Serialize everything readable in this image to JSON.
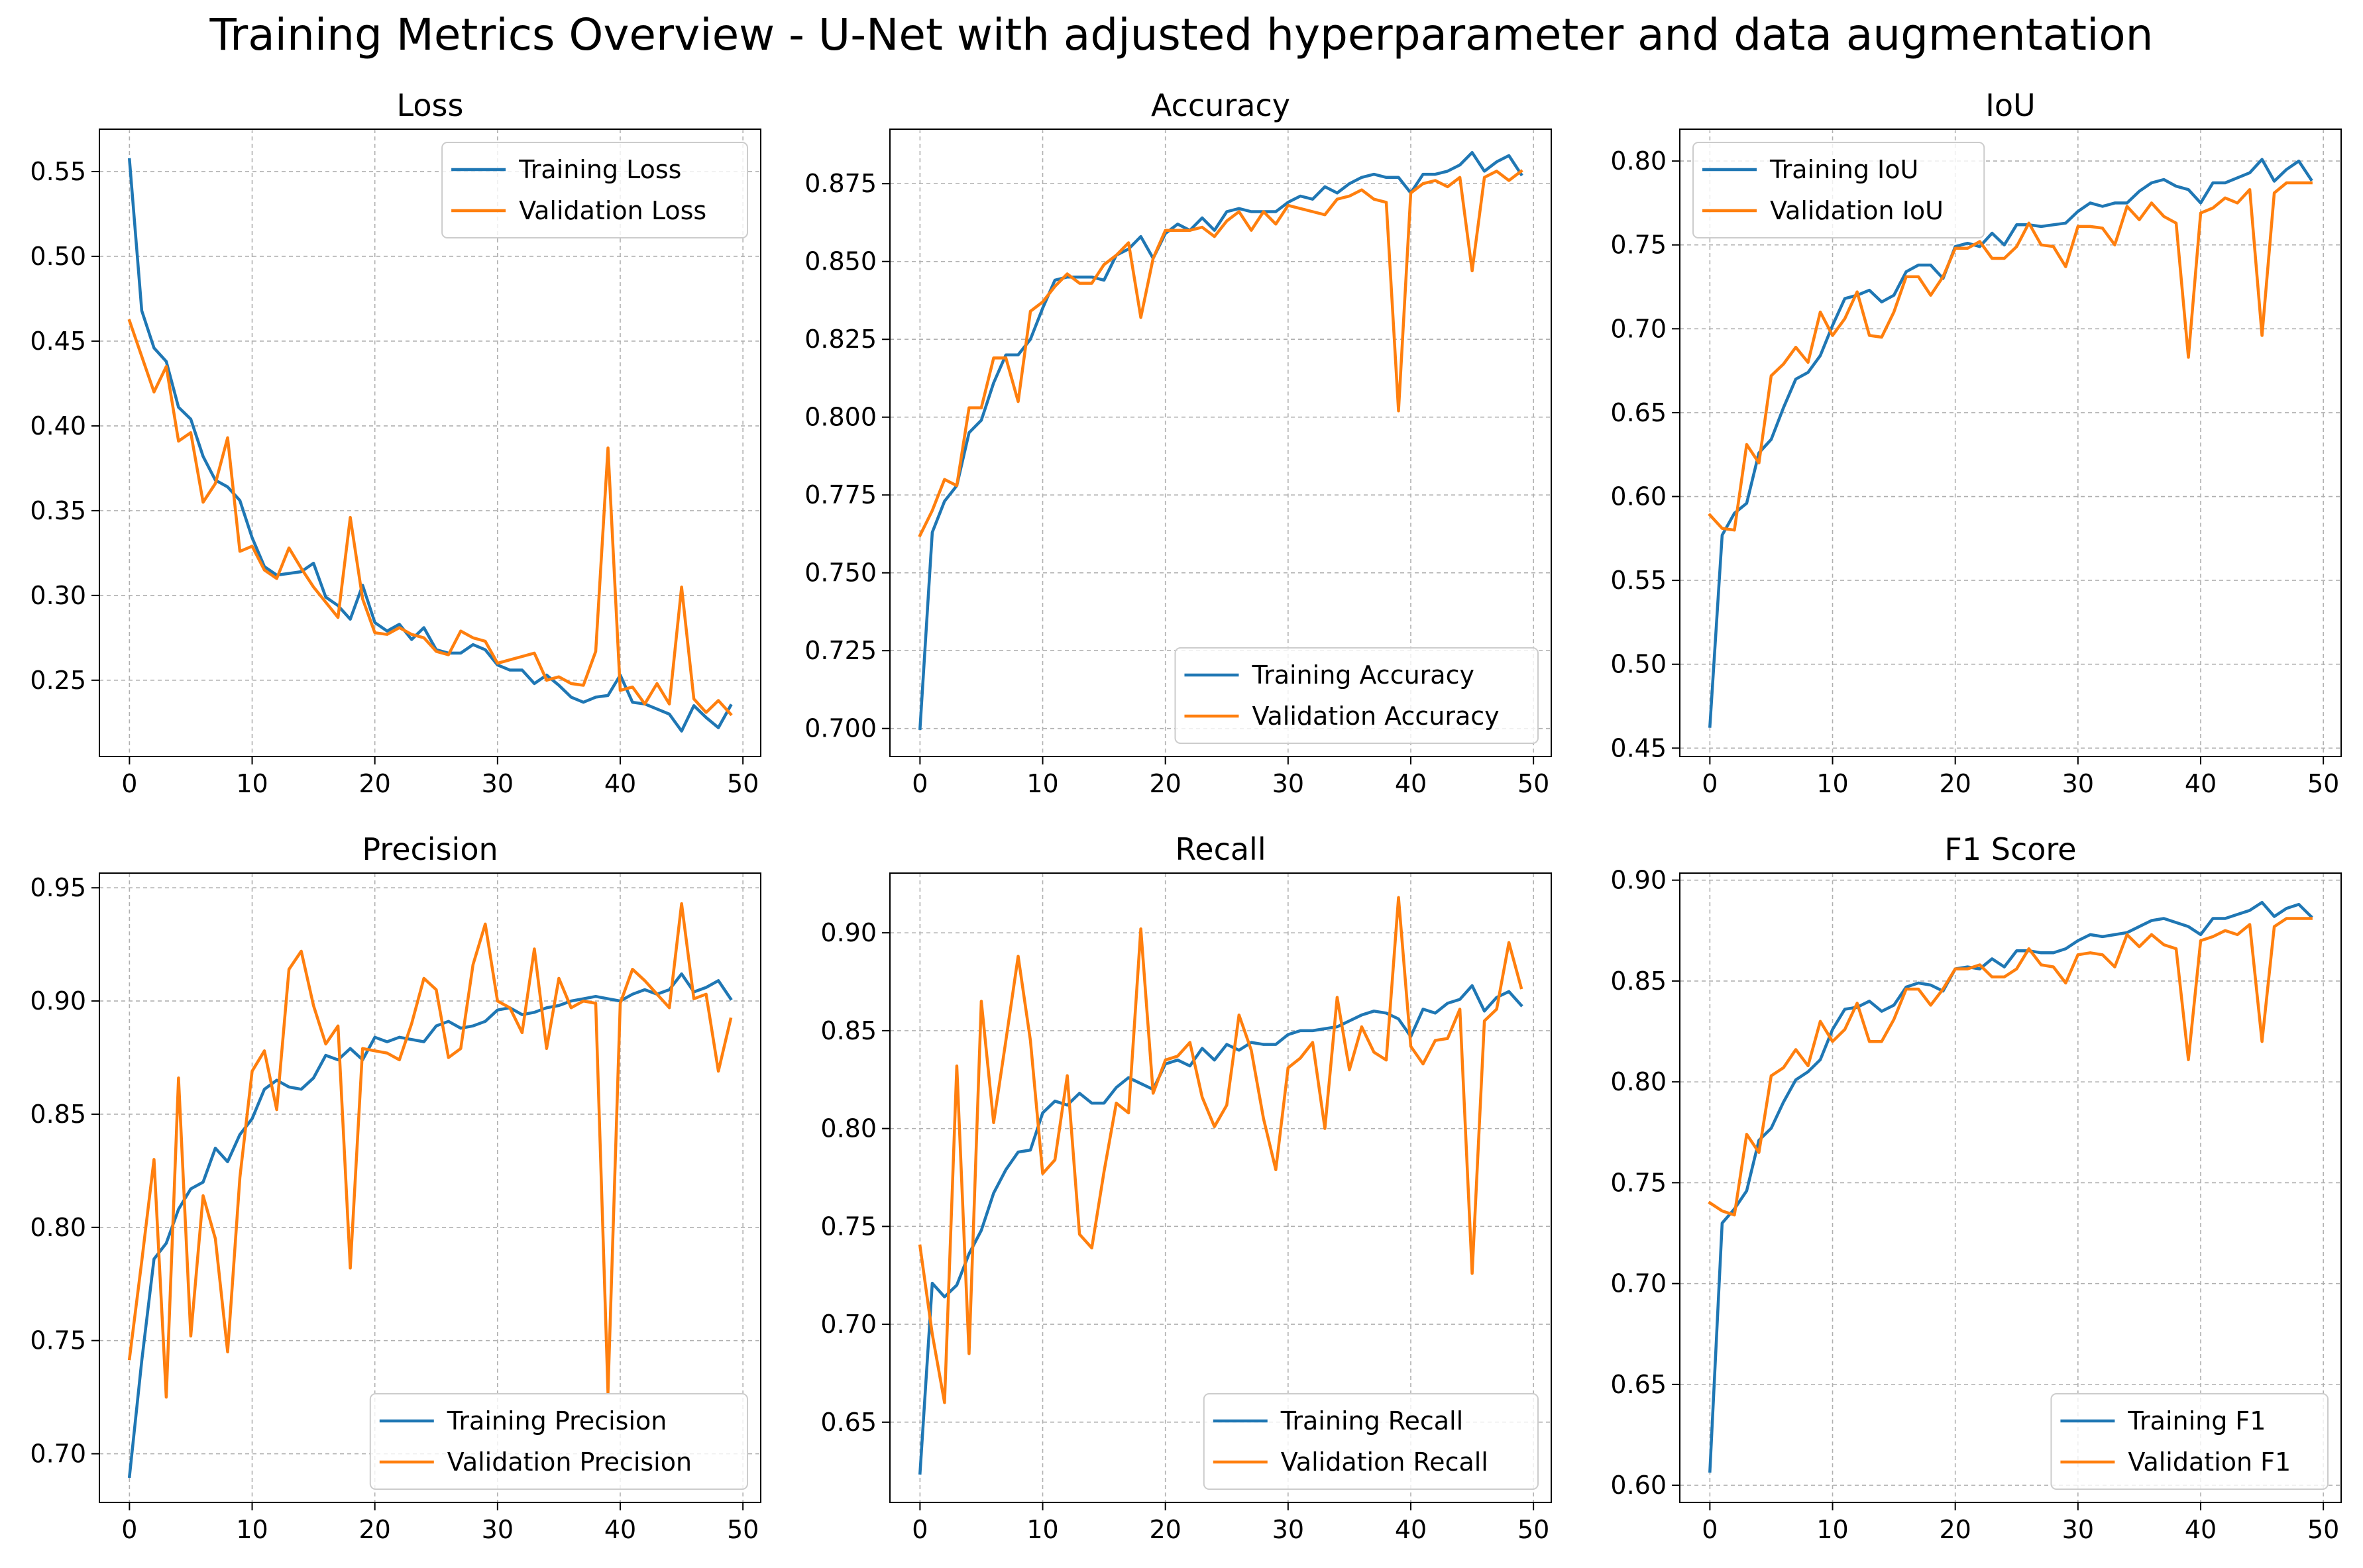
{
  "figure_title": "Training Metrics Overview - U-Net with adjusted hyperparameter and data augmentation",
  "colors": {
    "training": "#1f77b4",
    "validation": "#ff7f0e",
    "grid": "#b0b0b0"
  },
  "chart_data": [
    {
      "type": "line",
      "title": "Loss",
      "xlim": [
        -2.45,
        51.45
      ],
      "ylim": [
        0.205,
        0.575
      ],
      "xticks": [
        0,
        10,
        20,
        30,
        40,
        50
      ],
      "yticks": [
        0.25,
        0.3,
        0.35,
        0.4,
        0.45,
        0.5,
        0.55
      ],
      "legend": "upper right",
      "grid": true,
      "series": [
        {
          "name": "Training Loss",
          "values": [
            0.557,
            0.468,
            0.446,
            0.438,
            0.411,
            0.404,
            0.382,
            0.368,
            0.364,
            0.356,
            0.334,
            0.317,
            0.312,
            0.313,
            0.314,
            0.319,
            0.299,
            0.294,
            0.286,
            0.306,
            0.284,
            0.279,
            0.283,
            0.274,
            0.281,
            0.268,
            0.266,
            0.266,
            0.271,
            0.268,
            0.259,
            0.256,
            0.256,
            0.248,
            0.253,
            0.247,
            0.24,
            0.237,
            0.24,
            0.241,
            0.253,
            0.237,
            0.236,
            0.233,
            0.23,
            0.22,
            0.235,
            0.228,
            0.222,
            0.235
          ]
        },
        {
          "name": "Validation Loss",
          "values": [
            0.462,
            0.441,
            0.42,
            0.435,
            0.391,
            0.396,
            0.355,
            0.366,
            0.393,
            0.326,
            0.329,
            0.315,
            0.31,
            0.328,
            0.316,
            0.305,
            0.296,
            0.287,
            0.346,
            0.298,
            0.278,
            0.277,
            0.281,
            0.277,
            0.275,
            0.267,
            0.265,
            0.279,
            0.275,
            0.273,
            0.26,
            0.262,
            0.264,
            0.266,
            0.25,
            0.252,
            0.248,
            0.247,
            0.267,
            0.387,
            0.244,
            0.246,
            0.236,
            0.248,
            0.236,
            0.305,
            0.239,
            0.231,
            0.238,
            0.23
          ]
        }
      ]
    },
    {
      "type": "line",
      "title": "Accuracy",
      "xlim": [
        -2.45,
        51.45
      ],
      "ylim": [
        0.691,
        0.8925
      ],
      "xticks": [
        0,
        10,
        20,
        30,
        40,
        50
      ],
      "yticks": [
        0.7,
        0.725,
        0.75,
        0.775,
        0.8,
        0.825,
        0.85,
        0.875
      ],
      "legend": "lower right",
      "grid": true,
      "series": [
        {
          "name": "Training Accuracy",
          "values": [
            0.7,
            0.763,
            0.773,
            0.778,
            0.795,
            0.799,
            0.811,
            0.82,
            0.82,
            0.825,
            0.835,
            0.844,
            0.845,
            0.845,
            0.845,
            0.844,
            0.852,
            0.854,
            0.858,
            0.851,
            0.859,
            0.862,
            0.86,
            0.864,
            0.86,
            0.866,
            0.867,
            0.866,
            0.866,
            0.866,
            0.869,
            0.871,
            0.87,
            0.874,
            0.872,
            0.875,
            0.877,
            0.878,
            0.877,
            0.877,
            0.872,
            0.878,
            0.878,
            0.879,
            0.881,
            0.885,
            0.879,
            0.882,
            0.884,
            0.878
          ]
        },
        {
          "name": "Validation Accuracy",
          "values": [
            0.762,
            0.77,
            0.78,
            0.778,
            0.803,
            0.803,
            0.819,
            0.819,
            0.805,
            0.834,
            0.837,
            0.842,
            0.846,
            0.843,
            0.843,
            0.849,
            0.852,
            0.856,
            0.832,
            0.851,
            0.86,
            0.86,
            0.86,
            0.861,
            0.858,
            0.863,
            0.866,
            0.86,
            0.866,
            0.862,
            0.868,
            0.867,
            0.866,
            0.865,
            0.87,
            0.871,
            0.873,
            0.87,
            0.869,
            0.802,
            0.872,
            0.875,
            0.876,
            0.874,
            0.877,
            0.847,
            0.877,
            0.879,
            0.876,
            0.879
          ]
        }
      ]
    },
    {
      "type": "line",
      "title": "IoU",
      "xlim": [
        -2.45,
        51.45
      ],
      "ylim": [
        0.445,
        0.819
      ],
      "xticks": [
        0,
        10,
        20,
        30,
        40,
        50
      ],
      "yticks": [
        0.45,
        0.5,
        0.55,
        0.6,
        0.65,
        0.7,
        0.75,
        0.8
      ],
      "legend": "upper left",
      "grid": true,
      "series": [
        {
          "name": "Training IoU",
          "values": [
            0.463,
            0.577,
            0.59,
            0.596,
            0.626,
            0.634,
            0.653,
            0.67,
            0.674,
            0.684,
            0.702,
            0.718,
            0.72,
            0.723,
            0.716,
            0.72,
            0.734,
            0.738,
            0.738,
            0.73,
            0.749,
            0.751,
            0.749,
            0.757,
            0.75,
            0.762,
            0.762,
            0.761,
            0.762,
            0.763,
            0.77,
            0.775,
            0.773,
            0.775,
            0.775,
            0.782,
            0.787,
            0.789,
            0.785,
            0.783,
            0.775,
            0.787,
            0.787,
            0.79,
            0.793,
            0.801,
            0.788,
            0.795,
            0.8,
            0.789
          ]
        },
        {
          "name": "Validation IoU",
          "values": [
            0.589,
            0.581,
            0.58,
            0.631,
            0.62,
            0.672,
            0.679,
            0.689,
            0.68,
            0.71,
            0.696,
            0.706,
            0.722,
            0.696,
            0.695,
            0.71,
            0.731,
            0.731,
            0.72,
            0.731,
            0.748,
            0.748,
            0.752,
            0.742,
            0.742,
            0.749,
            0.763,
            0.75,
            0.749,
            0.737,
            0.761,
            0.761,
            0.76,
            0.75,
            0.773,
            0.765,
            0.775,
            0.767,
            0.763,
            0.683,
            0.769,
            0.772,
            0.778,
            0.775,
            0.783,
            0.696,
            0.781,
            0.787,
            0.787,
            0.787
          ]
        }
      ]
    },
    {
      "type": "line",
      "title": "Precision",
      "xlim": [
        -2.45,
        51.45
      ],
      "ylim": [
        0.6785,
        0.9565
      ],
      "xticks": [
        0,
        10,
        20,
        30,
        40,
        50
      ],
      "yticks": [
        0.7,
        0.75,
        0.8,
        0.85,
        0.9,
        0.95
      ],
      "legend": "lower right",
      "grid": true,
      "series": [
        {
          "name": "Training Precision",
          "values": [
            0.69,
            0.741,
            0.786,
            0.793,
            0.808,
            0.817,
            0.82,
            0.835,
            0.829,
            0.841,
            0.848,
            0.861,
            0.865,
            0.862,
            0.861,
            0.866,
            0.876,
            0.874,
            0.879,
            0.874,
            0.884,
            0.882,
            0.884,
            0.883,
            0.882,
            0.889,
            0.891,
            0.888,
            0.889,
            0.891,
            0.896,
            0.897,
            0.894,
            0.895,
            0.897,
            0.898,
            0.9,
            0.901,
            0.902,
            0.901,
            0.9,
            0.903,
            0.905,
            0.903,
            0.905,
            0.912,
            0.904,
            0.906,
            0.909,
            0.901
          ]
        },
        {
          "name": "Validation Precision",
          "values": [
            0.742,
            0.785,
            0.83,
            0.725,
            0.866,
            0.752,
            0.814,
            0.795,
            0.745,
            0.822,
            0.869,
            0.878,
            0.852,
            0.914,
            0.922,
            0.898,
            0.881,
            0.889,
            0.782,
            0.879,
            0.878,
            0.877,
            0.874,
            0.89,
            0.91,
            0.905,
            0.875,
            0.879,
            0.916,
            0.934,
            0.9,
            0.897,
            0.886,
            0.923,
            0.879,
            0.91,
            0.897,
            0.9,
            0.899,
            0.727,
            0.899,
            0.914,
            0.909,
            0.903,
            0.897,
            0.943,
            0.901,
            0.903,
            0.869,
            0.892
          ]
        }
      ]
    },
    {
      "type": "line",
      "title": "Recall",
      "xlim": [
        -2.45,
        51.45
      ],
      "ylim": [
        0.609,
        0.9305
      ],
      "xticks": [
        0,
        10,
        20,
        30,
        40,
        50
      ],
      "yticks": [
        0.65,
        0.7,
        0.75,
        0.8,
        0.85,
        0.9
      ],
      "legend": "lower right",
      "grid": true,
      "series": [
        {
          "name": "Training Recall",
          "values": [
            0.624,
            0.721,
            0.714,
            0.72,
            0.736,
            0.748,
            0.767,
            0.779,
            0.788,
            0.789,
            0.808,
            0.814,
            0.812,
            0.818,
            0.813,
            0.813,
            0.821,
            0.826,
            0.823,
            0.82,
            0.833,
            0.835,
            0.832,
            0.841,
            0.835,
            0.843,
            0.84,
            0.844,
            0.843,
            0.843,
            0.848,
            0.85,
            0.85,
            0.851,
            0.852,
            0.855,
            0.858,
            0.86,
            0.859,
            0.856,
            0.847,
            0.861,
            0.859,
            0.864,
            0.866,
            0.873,
            0.86,
            0.867,
            0.87,
            0.863
          ]
        },
        {
          "name": "Validation Recall",
          "values": [
            0.74,
            0.695,
            0.66,
            0.832,
            0.685,
            0.865,
            0.803,
            0.845,
            0.888,
            0.845,
            0.777,
            0.784,
            0.827,
            0.746,
            0.739,
            0.778,
            0.813,
            0.808,
            0.902,
            0.818,
            0.835,
            0.837,
            0.844,
            0.816,
            0.801,
            0.812,
            0.858,
            0.84,
            0.805,
            0.779,
            0.831,
            0.836,
            0.844,
            0.8,
            0.867,
            0.83,
            0.852,
            0.839,
            0.835,
            0.918,
            0.842,
            0.833,
            0.845,
            0.846,
            0.861,
            0.726,
            0.855,
            0.861,
            0.895,
            0.872
          ]
        }
      ]
    },
    {
      "type": "line",
      "title": "F1 Score",
      "xlim": [
        -2.45,
        51.45
      ],
      "ylim": [
        0.5915,
        0.9035
      ],
      "xticks": [
        0,
        10,
        20,
        30,
        40,
        50
      ],
      "yticks": [
        0.6,
        0.65,
        0.7,
        0.75,
        0.8,
        0.85,
        0.9
      ],
      "legend": "lower right",
      "grid": true,
      "series": [
        {
          "name": "Training F1",
          "values": [
            0.607,
            0.73,
            0.737,
            0.746,
            0.771,
            0.777,
            0.79,
            0.801,
            0.805,
            0.811,
            0.826,
            0.836,
            0.837,
            0.84,
            0.835,
            0.838,
            0.847,
            0.849,
            0.848,
            0.845,
            0.856,
            0.857,
            0.856,
            0.861,
            0.857,
            0.865,
            0.865,
            0.864,
            0.864,
            0.866,
            0.87,
            0.873,
            0.872,
            0.873,
            0.874,
            0.877,
            0.88,
            0.881,
            0.879,
            0.877,
            0.873,
            0.881,
            0.881,
            0.883,
            0.885,
            0.889,
            0.882,
            0.886,
            0.888,
            0.882
          ]
        },
        {
          "name": "Validation F1",
          "values": [
            0.74,
            0.736,
            0.734,
            0.774,
            0.765,
            0.803,
            0.807,
            0.816,
            0.808,
            0.83,
            0.82,
            0.826,
            0.839,
            0.82,
            0.82,
            0.831,
            0.846,
            0.846,
            0.838,
            0.846,
            0.856,
            0.856,
            0.858,
            0.852,
            0.852,
            0.856,
            0.866,
            0.858,
            0.857,
            0.849,
            0.863,
            0.864,
            0.863,
            0.857,
            0.873,
            0.867,
            0.873,
            0.868,
            0.866,
            0.811,
            0.87,
            0.872,
            0.875,
            0.873,
            0.878,
            0.82,
            0.877,
            0.881,
            0.881,
            0.881
          ]
        }
      ]
    }
  ]
}
